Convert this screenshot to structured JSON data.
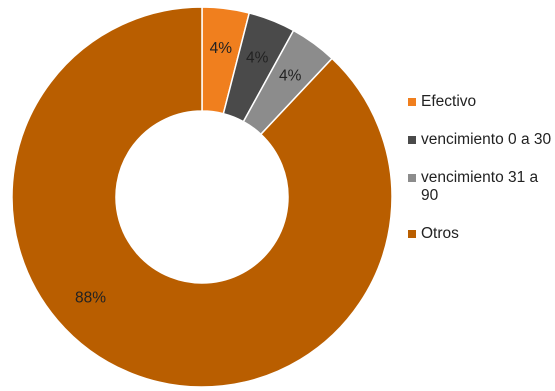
{
  "chart_data": {
    "type": "pie",
    "donut": true,
    "categories": [
      "Efectivo",
      "vencimiento 0 a 30",
      "vencimiento 31 a 90",
      "Otros"
    ],
    "values": [
      4,
      4,
      4,
      88
    ],
    "data_labels": [
      "4%",
      "4%",
      "4%",
      "88%"
    ],
    "colors": [
      "#f07f1e",
      "#4a4a4a",
      "#8c8c8c",
      "#b95e00"
    ],
    "legend_position": "right",
    "start_angle": "top, clockwise",
    "legend": [
      {
        "label": "Efectivo",
        "color": "#f07f1e"
      },
      {
        "label": "vencimiento 0 a 30",
        "color": "#4a4a4a"
      },
      {
        "label": "vencimiento 31 a 90",
        "color": "#8c8c8c"
      },
      {
        "label": "Otros",
        "color": "#b95e00"
      }
    ]
  }
}
